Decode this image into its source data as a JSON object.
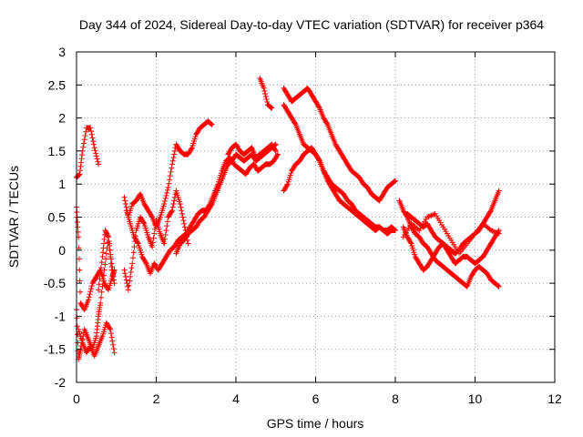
{
  "chart_data": {
    "type": "scatter",
    "title": "Day 344 of 2024, Sidereal Day-to-day VTEC variation (SDTVAR) for receiver p364",
    "xlabel": "GPS time / hours",
    "ylabel": "SDTVAR / TECUs",
    "xlim": [
      0,
      12
    ],
    "ylim": [
      -2,
      3
    ],
    "xticks": [
      0,
      2,
      4,
      6,
      8,
      10,
      12
    ],
    "xtick_labels": [
      "0",
      "2",
      "4",
      "6",
      "8",
      "10",
      "12"
    ],
    "yticks": [
      -2,
      -1.5,
      -1,
      -0.5,
      0,
      0.5,
      1,
      1.5,
      2,
      2.5,
      3
    ],
    "ytick_labels": [
      "-2",
      "-1.5",
      "-1",
      "-0.5",
      "0",
      "0.5",
      "1",
      "1.5",
      "2",
      "2.5",
      "3"
    ],
    "grid": true,
    "marker": "+",
    "color": "#ff0000",
    "series": [
      {
        "name": "s1",
        "x": [
          0.0,
          0.08,
          0.15,
          0.25,
          0.35,
          0.45,
          0.55,
          0.65,
          0.75,
          0.85,
          0.95
        ],
        "y": [
          1.1,
          1.15,
          1.5,
          1.85,
          1.85,
          1.55,
          1.3,
          null,
          null,
          null,
          null
        ]
      },
      {
        "name": "s2",
        "x": [
          0.0,
          0.05,
          0.1,
          0.2,
          0.3,
          0.4,
          0.5,
          0.6,
          0.7,
          0.8,
          0.9,
          0.95
        ],
        "y": [
          0.65,
          0.2,
          -0.8,
          -0.9,
          -0.75,
          -0.5,
          -0.4,
          -0.3,
          -0.5,
          -0.6,
          -0.4,
          -0.3
        ]
      },
      {
        "name": "s3",
        "x": [
          0.0,
          0.05,
          0.1,
          0.2,
          0.3,
          0.4,
          0.5,
          0.55,
          0.6,
          0.7,
          0.8,
          0.9
        ],
        "y": [
          -0.9,
          -1.65,
          -1.5,
          -1.2,
          -1.35,
          -1.5,
          -1.3,
          -1.0,
          -0.8,
          -0.3,
          0.2,
          -0.4
        ]
      },
      {
        "name": "s4",
        "x": [
          0.05,
          0.15,
          0.25,
          0.35,
          0.45,
          0.55,
          0.65,
          0.75,
          0.85,
          0.95
        ],
        "y": [
          -1.2,
          -1.4,
          -1.55,
          -1.45,
          -1.6,
          -1.45,
          -1.3,
          -1.1,
          -1.2,
          -1.55
        ]
      },
      {
        "name": "s5",
        "x": [
          0.55,
          0.65,
          0.72,
          0.8,
          0.88,
          0.95
        ],
        "y": [
          -0.6,
          -0.1,
          0.3,
          0.2,
          -0.2,
          -0.5
        ]
      },
      {
        "name": "s6",
        "x": [
          1.2,
          1.3,
          1.4,
          1.5,
          1.6,
          1.7,
          1.8,
          1.9,
          2.0,
          2.1,
          2.2,
          2.3,
          2.4,
          2.5,
          2.6,
          2.7,
          2.8,
          2.9,
          3.0,
          3.1,
          3.2,
          3.3,
          3.4
        ],
        "y": [
          0.8,
          0.5,
          0.7,
          0.75,
          0.85,
          0.7,
          0.6,
          0.5,
          0.35,
          0.5,
          0.7,
          0.95,
          1.3,
          1.6,
          1.5,
          1.45,
          1.45,
          1.55,
          1.75,
          1.85,
          1.9,
          1.95,
          1.9
        ]
      },
      {
        "name": "s7",
        "x": [
          1.2,
          1.3,
          1.4,
          1.5,
          1.6,
          1.7,
          1.8,
          1.9,
          2.0,
          2.1,
          2.2,
          2.3,
          2.4,
          2.5,
          2.6,
          2.7,
          2.8
        ],
        "y": [
          -0.3,
          -0.6,
          -0.2,
          0.3,
          0.5,
          0.4,
          0.2,
          0.05,
          0.45,
          0.25,
          0.1,
          0.5,
          0.6,
          0.9,
          0.7,
          0.4,
          0.1
        ]
      },
      {
        "name": "s8",
        "x": [
          1.25,
          1.35,
          1.45,
          1.55,
          1.65,
          1.75,
          1.85,
          1.95,
          2.05,
          2.15,
          2.25,
          2.35,
          2.45,
          2.55,
          2.65,
          2.75,
          2.85,
          2.95,
          3.05,
          3.15,
          3.25,
          3.35,
          3.45,
          3.55,
          3.65,
          3.75,
          3.85,
          3.95,
          4.05,
          4.15,
          4.25,
          4.35,
          4.45,
          4.55,
          4.65,
          4.75,
          4.85,
          4.95,
          5.05
        ],
        "y": [
          0.6,
          0.4,
          0.2,
          0.1,
          -0.1,
          -0.2,
          -0.35,
          -0.2,
          -0.3,
          -0.2,
          -0.1,
          0.0,
          0.05,
          0.15,
          0.2,
          0.25,
          0.35,
          0.45,
          0.55,
          0.6,
          0.6,
          0.7,
          0.85,
          1.0,
          1.2,
          1.35,
          1.4,
          1.3,
          1.25,
          1.2,
          1.15,
          1.25,
          1.3,
          1.2,
          1.25,
          1.3,
          1.3,
          1.35,
          1.45
        ]
      },
      {
        "name": "s9",
        "x": [
          2.5,
          2.6,
          2.7,
          2.8,
          2.9,
          3.0,
          3.1,
          3.2,
          3.3,
          3.4,
          3.5,
          3.6,
          3.7,
          3.8,
          3.9,
          4.0,
          4.1,
          4.2,
          4.3,
          4.4,
          4.5,
          4.6,
          4.7,
          4.8,
          4.9,
          5.0
        ],
        "y": [
          -0.05,
          0.1,
          0.15,
          0.25,
          0.3,
          0.35,
          0.45,
          0.5,
          0.6,
          0.7,
          0.85,
          1.0,
          1.15,
          1.3,
          1.35,
          1.45,
          1.4,
          1.35,
          1.4,
          1.45,
          1.35,
          1.4,
          1.45,
          1.5,
          1.55,
          1.6
        ]
      },
      {
        "name": "s10",
        "x": [
          3.8,
          3.9,
          4.0,
          4.1,
          4.2,
          4.3,
          4.4,
          4.5,
          4.6,
          4.7,
          4.8,
          4.9,
          5.0
        ],
        "y": [
          1.45,
          1.55,
          1.6,
          1.5,
          1.45,
          1.5,
          1.55,
          1.4,
          1.45,
          1.5,
          1.55,
          1.6,
          1.5
        ]
      },
      {
        "name": "s11",
        "x": [
          4.6,
          4.7,
          4.8,
          4.9
        ],
        "y": [
          2.6,
          2.45,
          2.2,
          2.15
        ]
      },
      {
        "name": "s12",
        "x": [
          5.2,
          5.3,
          5.4,
          5.5,
          5.6,
          5.7,
          5.8,
          5.9,
          6.0,
          6.1,
          6.2,
          6.3,
          6.4,
          6.5,
          6.6,
          6.7,
          6.8,
          6.9,
          7.0,
          7.1,
          7.2,
          7.3,
          7.4,
          7.5,
          7.6,
          7.7,
          7.8,
          7.9,
          8.0
        ],
        "y": [
          2.45,
          2.35,
          2.25,
          2.3,
          2.35,
          2.4,
          2.45,
          2.35,
          2.25,
          2.15,
          2.0,
          1.9,
          1.75,
          1.6,
          1.5,
          1.4,
          1.3,
          1.2,
          1.15,
          1.1,
          1.0,
          0.95,
          0.85,
          0.8,
          0.75,
          0.85,
          0.95,
          1.0,
          1.05
        ]
      },
      {
        "name": "s13",
        "x": [
          5.2,
          5.3,
          5.4,
          5.5,
          5.6,
          5.7,
          5.8,
          5.9,
          6.0,
          6.1,
          6.2,
          6.3,
          6.4,
          6.5,
          6.6,
          6.7,
          6.8,
          6.9,
          7.0,
          7.1,
          7.2,
          7.3,
          7.4,
          7.5,
          7.6,
          7.7,
          7.8,
          7.9,
          8.0
        ],
        "y": [
          2.2,
          2.1,
          2.0,
          1.9,
          1.75,
          1.6,
          1.55,
          1.5,
          1.45,
          1.35,
          1.2,
          1.05,
          0.95,
          0.85,
          0.75,
          0.7,
          0.65,
          0.6,
          0.55,
          0.5,
          0.45,
          0.4,
          0.35,
          0.3,
          0.35,
          0.3,
          0.3,
          0.35,
          0.3
        ]
      },
      {
        "name": "s14",
        "x": [
          5.2,
          5.3,
          5.4,
          5.5,
          5.6,
          5.7,
          5.8,
          5.9,
          6.0,
          6.1,
          6.2,
          6.3,
          6.4,
          6.5,
          6.6,
          6.7,
          6.8,
          6.9,
          7.0,
          7.1,
          7.2,
          7.3,
          7.4,
          7.5,
          7.6,
          7.7,
          7.8,
          7.9,
          8.0
        ],
        "y": [
          0.9,
          1.0,
          1.2,
          1.3,
          1.35,
          1.45,
          1.5,
          1.55,
          1.45,
          1.35,
          1.2,
          1.1,
          1.0,
          0.95,
          0.9,
          0.85,
          0.75,
          0.7,
          0.6,
          0.55,
          0.5,
          0.45,
          0.4,
          0.35,
          0.35,
          0.3,
          0.25,
          0.3,
          0.3
        ]
      },
      {
        "name": "s15",
        "x": [
          8.1,
          8.2,
          8.3,
          8.4,
          8.5,
          8.6,
          8.7,
          8.8,
          8.9,
          9.0,
          9.1,
          9.2,
          9.3,
          9.4,
          9.5,
          9.6,
          9.7,
          9.8,
          9.9,
          10.0,
          10.1,
          10.2,
          10.3,
          10.4,
          10.5,
          10.6
        ],
        "y": [
          0.75,
          0.6,
          0.5,
          0.35,
          0.25,
          0.2,
          0.1,
          0.05,
          -0.05,
          -0.15,
          -0.2,
          -0.25,
          -0.3,
          -0.35,
          -0.4,
          -0.45,
          -0.5,
          -0.55,
          -0.4,
          -0.3,
          -0.25,
          -0.3,
          -0.35,
          -0.45,
          -0.5,
          -0.55
        ]
      },
      {
        "name": "s16",
        "x": [
          8.2,
          8.3,
          8.4,
          8.5,
          8.6,
          8.7,
          8.8,
          8.9,
          9.0,
          9.1,
          9.2,
          9.3,
          9.4,
          9.5,
          9.6,
          9.7,
          9.8,
          9.9,
          10.0,
          10.1,
          10.2,
          10.3,
          10.4,
          10.5,
          10.6
        ],
        "y": [
          0.35,
          0.2,
          0.1,
          -0.1,
          -0.2,
          -0.3,
          -0.25,
          -0.15,
          -0.05,
          0.05,
          0.1,
          0.0,
          -0.1,
          -0.2,
          -0.15,
          -0.1,
          -0.1,
          -0.15,
          -0.2,
          -0.15,
          -0.1,
          0.0,
          0.1,
          0.2,
          0.3
        ]
      },
      {
        "name": "s17",
        "x": [
          8.3,
          8.4,
          8.5,
          8.6,
          8.7,
          8.8,
          8.9,
          9.0,
          9.1,
          9.2,
          9.3,
          9.4,
          9.5,
          9.6,
          9.7,
          9.8,
          9.9,
          10.0,
          10.1,
          10.2,
          10.3,
          10.4,
          10.5,
          10.6
        ],
        "y": [
          0.55,
          0.5,
          0.45,
          0.4,
          0.35,
          0.4,
          0.3,
          0.2,
          0.15,
          0.1,
          0.05,
          0.0,
          -0.05,
          0.0,
          0.1,
          0.15,
          0.2,
          0.25,
          0.3,
          0.4,
          0.5,
          0.6,
          0.75,
          0.9
        ]
      },
      {
        "name": "s18",
        "x": [
          8.2,
          8.4,
          8.6,
          8.8,
          9.0,
          9.2,
          9.4,
          9.6,
          9.8,
          10.0,
          10.2,
          10.4,
          10.6
        ],
        "y": [
          0.2,
          0.4,
          0.3,
          0.5,
          0.55,
          0.35,
          0.15,
          -0.05,
          0.1,
          0.25,
          0.4,
          0.3,
          0.25
        ]
      }
    ]
  }
}
